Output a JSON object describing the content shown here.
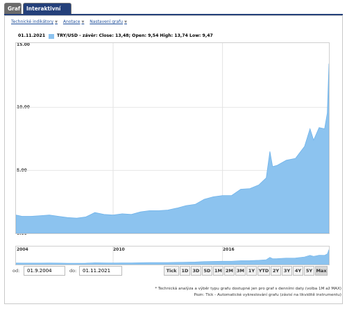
{
  "tabs": {
    "graf": "Graf",
    "interactive": "Interaktivní graf"
  },
  "toolbar": {
    "indicators": "Technické indikátory",
    "annotations": "Anotace",
    "settings": "Nastavení grafu"
  },
  "legend": {
    "date": "01.11.2021",
    "text": "TRY/USD - závěr: Close: 13,48; Open: 9,54 High: 13,74 Low: 9,47",
    "color": "#8cc3ef"
  },
  "chart_data": {
    "type": "area",
    "series": [
      {
        "name": "TRY/USD - závěr",
        "x": [
          2004.67,
          2005,
          2005.5,
          2006,
          2006.5,
          2007,
          2007.5,
          2008,
          2008.5,
          2009,
          2009.5,
          2010,
          2010.5,
          2011,
          2011.5,
          2012,
          2012.5,
          2013,
          2013.5,
          2014,
          2014.5,
          2015,
          2015.5,
          2016,
          2016.5,
          2017,
          2017.5,
          2018,
          2018.4,
          2018.6,
          2018.75,
          2019,
          2019.5,
          2020,
          2020.5,
          2020.8,
          2021,
          2021.3,
          2021.6,
          2021.75,
          2021.84
        ],
        "values": [
          1.45,
          1.35,
          1.35,
          1.4,
          1.45,
          1.35,
          1.25,
          1.2,
          1.3,
          1.65,
          1.5,
          1.45,
          1.55,
          1.5,
          1.7,
          1.8,
          1.8,
          1.85,
          2.0,
          2.2,
          2.3,
          2.7,
          2.9,
          3.0,
          3.0,
          3.5,
          3.55,
          3.85,
          4.4,
          6.5,
          5.3,
          5.4,
          5.8,
          5.95,
          6.9,
          8.3,
          7.4,
          8.4,
          8.3,
          9.55,
          13.48
        ]
      }
    ],
    "ylim": [
      0,
      15
    ],
    "yticks": [
      "0.00",
      "5.00",
      "10.00",
      "15.00"
    ],
    "xlim": [
      2004.67,
      2021.84
    ],
    "vgrid": [
      2010,
      2016
    ],
    "grid": true
  },
  "navigator": {
    "labels": [
      "2004",
      "2010",
      "2016"
    ]
  },
  "range": {
    "from_label": "od:",
    "from": "01.9.2004",
    "to_label": "do:",
    "to": "01.11.2021",
    "buttons": [
      "Tick",
      "1D",
      "3D",
      "5D",
      "1M",
      "2M",
      "3M",
      "1Y",
      "YTD",
      "2Y",
      "3Y",
      "4Y",
      "5Y",
      "Max"
    ],
    "selected": "Max"
  },
  "notes": {
    "line1": "* Technická analýza a výběr typu grafu dostupné jen pro graf s denními daty (volba 1M až MAX)",
    "line2": "Pozn: Tick - Automatické vykreslování grafu (závisí na likviditě instrumentu)"
  }
}
